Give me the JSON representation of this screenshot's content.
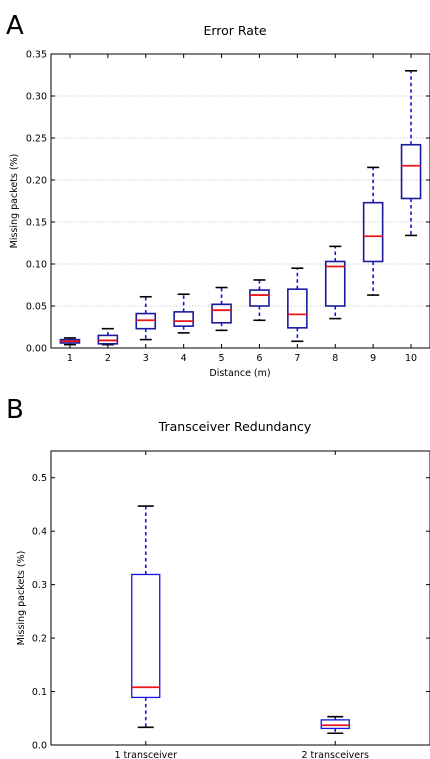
{
  "panels": [
    {
      "letter": "A"
    },
    {
      "letter": "B"
    }
  ],
  "chart_data": [
    {
      "type": "box",
      "title": "Error Rate",
      "xlabel": "Distance (m)",
      "ylabel": "Missing packets (%)",
      "ylim": [
        0,
        0.35
      ],
      "yticks": [
        "0.00",
        "0.05",
        "0.10",
        "0.15",
        "0.20",
        "0.25",
        "0.30",
        "0.35"
      ],
      "grid": "horizontal-dotted",
      "categories": [
        "1",
        "2",
        "3",
        "4",
        "5",
        "6",
        "7",
        "8",
        "9",
        "10"
      ],
      "boxes": [
        {
          "whisker_low": 0.004,
          "q1": 0.006,
          "median": 0.008,
          "q3": 0.01,
          "whisker_high": 0.012
        },
        {
          "whisker_low": 0.004,
          "q1": 0.005,
          "median": 0.009,
          "q3": 0.015,
          "whisker_high": 0.023
        },
        {
          "whisker_low": 0.01,
          "q1": 0.023,
          "median": 0.033,
          "q3": 0.041,
          "whisker_high": 0.061
        },
        {
          "whisker_low": 0.018,
          "q1": 0.026,
          "median": 0.032,
          "q3": 0.043,
          "whisker_high": 0.064
        },
        {
          "whisker_low": 0.021,
          "q1": 0.03,
          "median": 0.045,
          "q3": 0.052,
          "whisker_high": 0.072
        },
        {
          "whisker_low": 0.033,
          "q1": 0.05,
          "median": 0.063,
          "q3": 0.069,
          "whisker_high": 0.081
        },
        {
          "whisker_low": 0.008,
          "q1": 0.024,
          "median": 0.04,
          "q3": 0.07,
          "whisker_high": 0.095
        },
        {
          "whisker_low": 0.035,
          "q1": 0.05,
          "median": 0.097,
          "q3": 0.103,
          "whisker_high": 0.121
        },
        {
          "whisker_low": 0.063,
          "q1": 0.103,
          "median": 0.133,
          "q3": 0.173,
          "whisker_high": 0.215
        },
        {
          "whisker_low": 0.134,
          "q1": 0.178,
          "median": 0.217,
          "q3": 0.242,
          "whisker_high": 0.33
        }
      ],
      "colors": {
        "box": "#1a1a9e",
        "median": "#e8151b",
        "whisker": "#1515e0",
        "cap": "#000000",
        "grid": "#b0b0b0"
      }
    },
    {
      "type": "box",
      "title": "Transceiver Redundancy",
      "xlabel": "",
      "ylabel": "Missing packets (%)",
      "ylim": [
        0,
        0.55
      ],
      "yticks": [
        "0.0",
        "0.1",
        "0.2",
        "0.3",
        "0.4",
        "0.5"
      ],
      "grid": "none",
      "categories": [
        "1 transceiver",
        "2 transceivers"
      ],
      "boxes": [
        {
          "whisker_low": 0.033,
          "q1": 0.089,
          "median": 0.108,
          "q3": 0.319,
          "whisker_high": 0.447
        },
        {
          "whisker_low": 0.022,
          "q1": 0.031,
          "median": 0.037,
          "q3": 0.047,
          "whisker_high": 0.053
        }
      ],
      "colors": {
        "box": "#1515e0",
        "median": "#e8151b",
        "whisker": "#1515e0",
        "cap": "#000000"
      }
    }
  ]
}
